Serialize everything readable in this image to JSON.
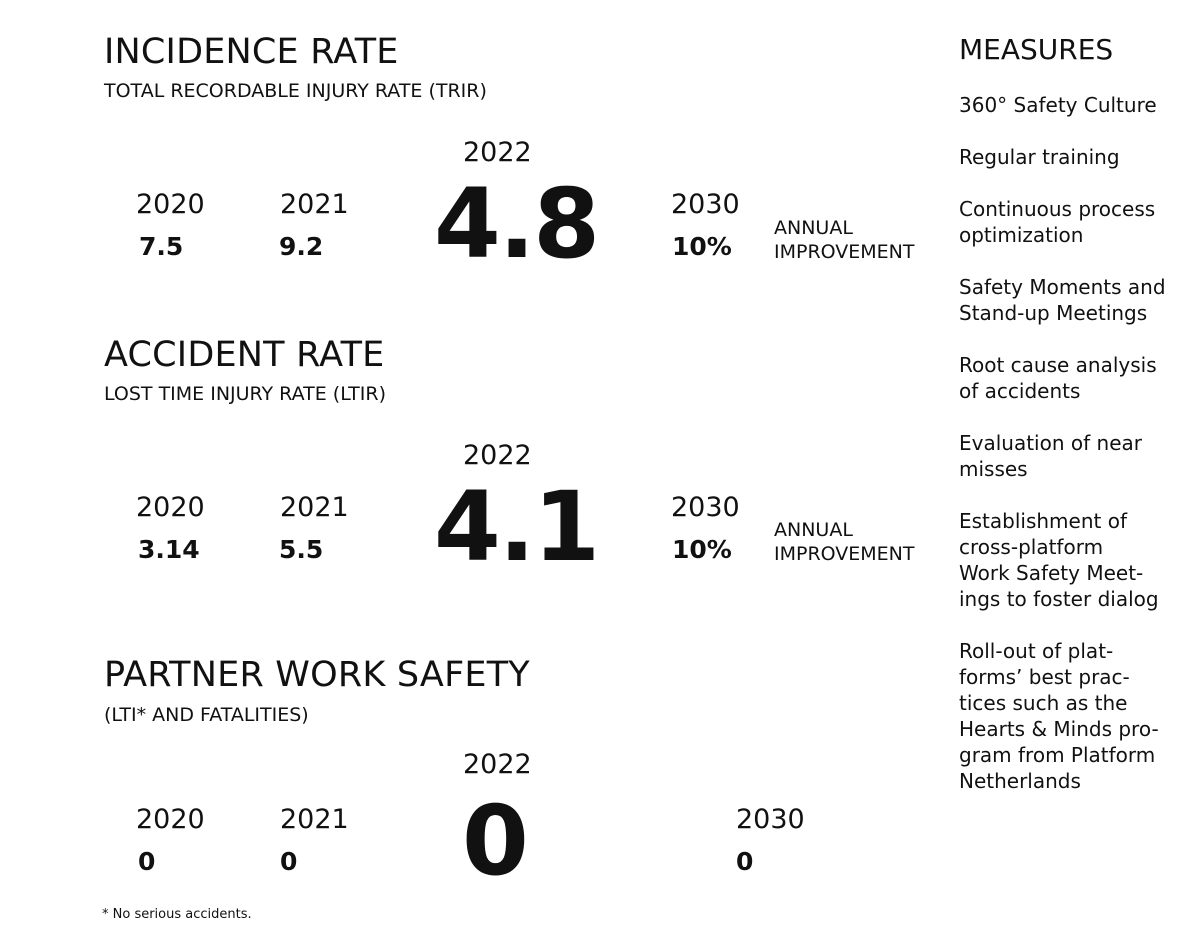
{
  "incidence": {
    "title": "INCIDENCE RATE",
    "subtitle": "TOTAL RECORDABLE INJURY RATE (TRIR)",
    "y2020_label": "2020",
    "y2020_value": "7.5",
    "y2021_label": "2021",
    "y2021_value": "9.2",
    "y2022_label": "2022",
    "y2022_value": "4.8",
    "y2030_label": "2030",
    "y2030_value": "10%",
    "annual_line1": "ANNUAL",
    "annual_line2": "IMPROVEMENT"
  },
  "accident": {
    "title": "ACCIDENT RATE",
    "subtitle": "LOST TIME INJURY RATE (LTIR)",
    "y2020_label": "2020",
    "y2020_value": "3.14",
    "y2021_label": "2021",
    "y2021_value": "5.5",
    "y2022_label": "2022",
    "y2022_value": "4.1",
    "y2030_label": "2030",
    "y2030_value": "10%",
    "annual_line1": "ANNUAL",
    "annual_line2": "IMPROVEMENT"
  },
  "partner": {
    "title": "PARTNER WORK SAFETY",
    "subtitle": "(LTI* AND FATALITIES)",
    "y2020_label": "2020",
    "y2020_value": "0",
    "y2021_label": "2021",
    "y2021_value": "0",
    "y2022_label": "2022",
    "y2022_value": "0",
    "y2030_label": "2030",
    "y2030_value": "0"
  },
  "footnote": "* No serious accidents.",
  "measures": {
    "title": "MEASURES",
    "items": [
      "360° Safety Culture",
      "Regular training",
      "Continuous process\noptimization",
      "Safety Moments and\nStand-up Meetings",
      "Root cause analysis\nof accidents",
      "Evaluation of near\nmisses",
      "Establishment of\ncross-platform\nWork Safety Meet-\nings to foster dialog",
      "Roll-out of plat-\nforms’ best prac-\ntices such as the\nHearts & Minds pro-\ngram from Platform\nNetherlands"
    ]
  }
}
